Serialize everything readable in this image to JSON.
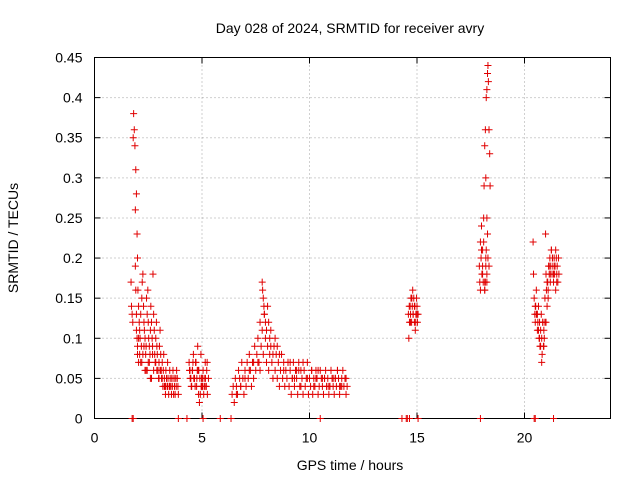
{
  "chart_data": {
    "type": "scatter",
    "title": "Day 028 of 2024, SRMTID for receiver avry",
    "xlabel": "GPS time / hours",
    "ylabel": "SRMTID / TECUs",
    "xlim": [
      0,
      24
    ],
    "ylim": [
      0,
      0.45
    ],
    "xticks": [
      0,
      5,
      10,
      15,
      20
    ],
    "yticks": [
      0,
      0.05,
      0.1,
      0.15,
      0.2,
      0.25,
      0.3,
      0.35,
      0.4,
      0.45
    ],
    "xtick_labels": [
      "0",
      "5",
      "10",
      "15",
      "20"
    ],
    "ytick_labels": [
      "0",
      "0.05",
      "0.1",
      "0.15",
      "0.2",
      "0.25",
      "0.3",
      "0.35",
      "0.4",
      "0.45"
    ],
    "grid": true,
    "marker": "plus",
    "color": "#e00000",
    "series": [
      {
        "name": "SRMTID",
        "x": [
          1.7,
          1.72,
          1.75,
          1.78,
          1.8,
          1.82,
          1.85,
          1.88,
          1.9,
          1.92,
          1.95,
          1.98,
          2.0,
          2.02,
          2.05,
          2.08,
          2.1,
          2.12,
          2.15,
          2.18,
          2.2,
          2.22,
          2.25,
          2.28,
          2.3,
          2.32,
          2.35,
          2.38,
          2.4,
          2.42,
          2.45,
          2.48,
          2.5,
          2.52,
          2.55,
          2.58,
          2.6,
          2.62,
          2.65,
          2.68,
          2.7,
          2.72,
          2.75,
          2.78,
          2.8,
          2.82,
          2.85,
          2.88,
          2.9,
          2.92,
          2.95,
          2.98,
          3.0,
          3.02,
          3.05,
          3.08,
          3.1,
          3.12,
          3.15,
          3.18,
          3.2,
          3.22,
          3.25,
          3.28,
          3.3,
          3.32,
          3.35,
          3.38,
          3.4,
          3.42,
          3.45,
          3.48,
          3.5,
          3.52,
          3.55,
          3.58,
          3.6,
          3.62,
          3.65,
          3.68,
          3.7,
          3.72,
          3.75,
          3.78,
          3.8,
          3.82,
          3.85,
          3.88,
          3.9,
          1.9,
          1.92,
          1.95,
          1.98,
          2.0,
          2.05,
          1.95,
          2.0,
          2.1,
          2.2,
          2.3,
          2.45,
          2.55,
          2.7,
          2.9,
          3.0,
          3.1,
          3.25,
          2.05,
          2.15,
          2.35,
          2.6,
          2.85,
          3.05,
          3.4,
          3.6,
          2.25,
          2.5,
          2.75,
          3.15,
          3.5,
          2.4,
          2.65,
          2.95,
          3.3,
          3.7,
          4.4,
          4.45,
          4.5,
          4.55,
          4.6,
          4.65,
          4.7,
          4.75,
          4.8,
          4.85,
          4.9,
          4.95,
          5.0,
          5.05,
          5.1,
          5.15,
          5.2,
          5.25,
          5.3,
          4.42,
          4.52,
          4.62,
          4.72,
          4.82,
          4.92,
          5.02,
          5.12,
          5.22,
          4.48,
          4.58,
          4.68,
          4.78,
          4.88,
          4.98,
          5.08,
          5.18,
          4.44,
          4.64,
          4.84,
          5.04,
          5.24,
          4.56,
          4.76,
          4.96,
          5.16,
          6.4,
          6.45,
          6.5,
          6.55,
          6.6,
          6.65,
          6.7,
          6.75,
          6.8,
          6.85,
          6.9,
          6.95,
          7.0,
          7.05,
          7.1,
          7.15,
          7.2,
          7.25,
          7.3,
          7.35,
          7.4,
          7.45,
          7.5,
          7.55,
          7.6,
          7.65,
          7.7,
          7.75,
          7.8,
          7.85,
          7.9,
          7.95,
          8.0,
          8.05,
          8.1,
          8.15,
          8.2,
          8.25,
          8.3,
          8.35,
          8.4,
          8.45,
          8.5,
          8.55,
          8.6,
          8.65,
          8.7,
          8.75,
          8.8,
          8.85,
          8.9,
          8.95,
          9.0,
          9.05,
          9.1,
          9.15,
          9.2,
          9.25,
          9.3,
          9.35,
          9.4,
          9.45,
          9.5,
          9.55,
          9.6,
          9.65,
          9.7,
          9.75,
          9.8,
          9.85,
          9.9,
          9.95,
          10.0,
          10.05,
          10.1,
          10.15,
          10.2,
          10.25,
          10.3,
          10.35,
          10.4,
          10.45,
          10.5,
          10.55,
          10.6,
          10.65,
          10.7,
          10.75,
          10.8,
          10.85,
          10.9,
          10.95,
          11.0,
          11.05,
          11.1,
          11.15,
          11.2,
          11.25,
          11.3,
          11.35,
          11.4,
          11.45,
          11.5,
          11.55,
          11.6,
          11.65,
          11.7,
          11.75,
          7.8,
          7.82,
          7.85,
          7.88,
          7.9,
          7.95,
          8.0,
          8.05,
          8.1,
          8.15,
          8.2,
          8.3,
          8.4,
          8.5,
          7.6,
          7.7,
          9.0,
          9.2,
          9.4,
          9.6,
          10.1,
          10.3,
          10.6,
          10.8,
          11.0,
          11.2,
          11.4,
          6.6,
          6.8,
          7.0,
          7.2,
          7.4,
          8.6,
          8.8,
          9.1,
          9.3,
          9.5,
          9.7,
          9.9,
          10.2,
          10.4,
          10.7,
          10.9,
          11.1,
          11.3,
          11.5,
          11.7,
          14.6,
          14.62,
          14.65,
          14.68,
          14.7,
          14.72,
          14.75,
          14.78,
          14.8,
          14.82,
          14.85,
          14.88,
          14.9,
          14.92,
          14.95,
          14.98,
          15.0,
          15.02,
          15.05,
          14.64,
          14.7,
          14.76,
          14.82,
          14.88,
          14.94,
          15.0,
          17.9,
          17.92,
          17.95,
          17.98,
          18.0,
          18.02,
          18.05,
          18.08,
          18.1,
          18.12,
          18.15,
          18.18,
          18.2,
          18.22,
          18.25,
          18.28,
          18.3,
          18.32,
          18.35,
          18.38,
          18.4,
          18.0,
          18.05,
          18.1,
          18.15,
          18.2,
          18.25,
          17.95,
          18.05,
          18.15,
          18.25,
          18.35,
          18.3,
          18.28,
          18.25,
          18.22,
          18.2,
          18.18,
          18.15,
          20.4,
          20.42,
          20.45,
          20.48,
          20.5,
          20.52,
          20.55,
          20.58,
          20.6,
          20.62,
          20.65,
          20.68,
          20.7,
          20.72,
          20.75,
          20.78,
          20.8,
          20.82,
          20.85,
          20.88,
          20.9,
          20.92,
          20.95,
          20.98,
          21.0,
          21.02,
          21.05,
          21.08,
          21.1,
          21.12,
          21.15,
          21.18,
          21.2,
          21.22,
          21.25,
          21.28,
          21.3,
          21.32,
          21.35,
          21.38,
          21.4,
          21.42,
          21.45,
          21.48,
          21.5,
          21.52,
          21.55,
          21.58,
          21.6,
          20.5,
          20.6,
          20.7,
          20.8,
          20.9,
          21.0,
          21.1,
          21.2,
          21.3,
          21.4,
          21.5,
          20.55,
          20.65,
          20.75,
          20.85,
          20.95,
          21.05,
          21.15,
          21.25,
          21.35,
          21.45,
          1.75,
          1.8,
          3.9,
          4.3,
          5.05,
          5.85,
          6.35,
          10.5,
          14.3,
          14.5,
          14.55,
          14.65,
          15.05,
          17.95,
          20.45,
          20.5,
          21.35
        ],
        "y": [
          0.17,
          0.14,
          0.13,
          0.12,
          0.35,
          0.38,
          0.36,
          0.34,
          0.26,
          0.31,
          0.28,
          0.23,
          0.2,
          0.16,
          0.14,
          0.12,
          0.11,
          0.1,
          0.13,
          0.09,
          0.15,
          0.17,
          0.18,
          0.14,
          0.12,
          0.11,
          0.1,
          0.08,
          0.09,
          0.15,
          0.13,
          0.16,
          0.12,
          0.1,
          0.09,
          0.08,
          0.11,
          0.14,
          0.12,
          0.1,
          0.09,
          0.18,
          0.13,
          0.11,
          0.08,
          0.07,
          0.1,
          0.12,
          0.09,
          0.08,
          0.06,
          0.05,
          0.07,
          0.09,
          0.11,
          0.08,
          0.06,
          0.05,
          0.07,
          0.04,
          0.06,
          0.08,
          0.05,
          0.04,
          0.03,
          0.06,
          0.05,
          0.04,
          0.07,
          0.05,
          0.03,
          0.04,
          0.06,
          0.05,
          0.04,
          0.03,
          0.05,
          0.04,
          0.06,
          0.03,
          0.05,
          0.04,
          0.03,
          0.05,
          0.04,
          0.06,
          0.05,
          0.04,
          0.03,
          0.19,
          0.16,
          0.13,
          0.1,
          0.08,
          0.07,
          0.11,
          0.09,
          0.08,
          0.07,
          0.09,
          0.06,
          0.07,
          0.08,
          0.06,
          0.05,
          0.06,
          0.04,
          0.1,
          0.07,
          0.06,
          0.05,
          0.07,
          0.06,
          0.04,
          0.05,
          0.08,
          0.07,
          0.06,
          0.05,
          0.04,
          0.06,
          0.05,
          0.06,
          0.04,
          0.05,
          0.07,
          0.05,
          0.04,
          0.06,
          0.08,
          0.05,
          0.07,
          0.04,
          0.09,
          0.06,
          0.05,
          0.08,
          0.04,
          0.06,
          0.05,
          0.07,
          0.04,
          0.03,
          0.05,
          0.06,
          0.04,
          0.05,
          0.07,
          0.06,
          0.03,
          0.05,
          0.04,
          0.06,
          0.05,
          0.07,
          0.04,
          0.06,
          0.02,
          0.05,
          0.03,
          0.04,
          0.06,
          0.05,
          0.03,
          0.04,
          0.07,
          0.06,
          0.05,
          0.04,
          0.05,
          0.03,
          0.04,
          0.02,
          0.05,
          0.04,
          0.03,
          0.06,
          0.05,
          0.04,
          0.07,
          0.05,
          0.03,
          0.06,
          0.04,
          0.07,
          0.05,
          0.08,
          0.06,
          0.04,
          0.07,
          0.05,
          0.09,
          0.06,
          0.08,
          0.1,
          0.07,
          0.12,
          0.09,
          0.11,
          0.08,
          0.13,
          0.1,
          0.07,
          0.09,
          0.06,
          0.08,
          0.11,
          0.07,
          0.05,
          0.09,
          0.06,
          0.08,
          0.05,
          0.07,
          0.04,
          0.06,
          0.08,
          0.05,
          0.07,
          0.04,
          0.06,
          0.05,
          0.07,
          0.04,
          0.06,
          0.03,
          0.05,
          0.07,
          0.04,
          0.06,
          0.05,
          0.03,
          0.07,
          0.04,
          0.06,
          0.05,
          0.03,
          0.06,
          0.04,
          0.05,
          0.07,
          0.03,
          0.05,
          0.04,
          0.06,
          0.03,
          0.05,
          0.04,
          0.06,
          0.05,
          0.03,
          0.04,
          0.06,
          0.05,
          0.04,
          0.03,
          0.05,
          0.06,
          0.04,
          0.05,
          0.03,
          0.04,
          0.06,
          0.05,
          0.04,
          0.03,
          0.05,
          0.04,
          0.06,
          0.05,
          0.03,
          0.04,
          0.05,
          0.06,
          0.04,
          0.05,
          0.03,
          0.04,
          0.17,
          0.16,
          0.15,
          0.14,
          0.13,
          0.12,
          0.11,
          0.14,
          0.12,
          0.1,
          0.09,
          0.08,
          0.1,
          0.09,
          0.07,
          0.06,
          0.07,
          0.05,
          0.06,
          0.04,
          0.06,
          0.05,
          0.05,
          0.04,
          0.06,
          0.05,
          0.04,
          0.03,
          0.04,
          0.05,
          0.06,
          0.07,
          0.08,
          0.06,
          0.07,
          0.05,
          0.06,
          0.07,
          0.05,
          0.04,
          0.06,
          0.05,
          0.04,
          0.05,
          0.06,
          0.04,
          0.05,
          0.13,
          0.1,
          0.12,
          0.14,
          0.13,
          0.15,
          0.12,
          0.14,
          0.16,
          0.13,
          0.15,
          0.12,
          0.14,
          0.11,
          0.13,
          0.15,
          0.14,
          0.12,
          0.13,
          0.14,
          0.12,
          0.15,
          0.13,
          0.14,
          0.12,
          0.13,
          0.19,
          0.17,
          0.22,
          0.2,
          0.24,
          0.18,
          0.21,
          0.17,
          0.25,
          0.29,
          0.34,
          0.36,
          0.3,
          0.4,
          0.41,
          0.43,
          0.44,
          0.42,
          0.36,
          0.33,
          0.29,
          0.21,
          0.19,
          0.22,
          0.17,
          0.2,
          0.18,
          0.16,
          0.18,
          0.16,
          0.17,
          0.19,
          0.2,
          0.23,
          0.25,
          0.21,
          0.19,
          0.17,
          0.16,
          0.22,
          0.18,
          0.15,
          0.13,
          0.12,
          0.14,
          0.16,
          0.13,
          0.11,
          0.12,
          0.14,
          0.1,
          0.12,
          0.09,
          0.11,
          0.13,
          0.1,
          0.08,
          0.12,
          0.09,
          0.11,
          0.1,
          0.12,
          0.23,
          0.18,
          0.16,
          0.14,
          0.17,
          0.15,
          0.19,
          0.18,
          0.2,
          0.17,
          0.19,
          0.21,
          0.18,
          0.2,
          0.19,
          0.17,
          0.2,
          0.18,
          0.19,
          0.21,
          0.2,
          0.18,
          0.19,
          0.17,
          0.2,
          0.18,
          0.14,
          0.13,
          0.1,
          0.07,
          0.09,
          0.12,
          0.16,
          0.18,
          0.2,
          0.19,
          0.17,
          0.13,
          0.11,
          0.09,
          0.12,
          0.15,
          0.17,
          0.19,
          0.21,
          0.18,
          0.16,
          0.0,
          0.0,
          0.0,
          0.0,
          0.0,
          0.0,
          0.0,
          0.0,
          0.0,
          0.0,
          0.0,
          0.0,
          0.0,
          0.0,
          0.0,
          0.0,
          0.0
        ]
      }
    ]
  }
}
